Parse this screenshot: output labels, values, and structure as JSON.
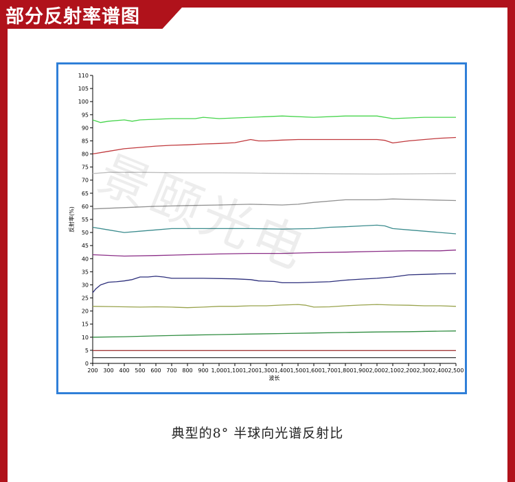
{
  "page": {
    "title": "部分反射率谱图",
    "caption": "典型的8° 半球向光谱反射比",
    "watermark": "景颐光电"
  },
  "colors": {
    "brand_red": "#b0121b",
    "frame_blue": "#2f7fd8"
  },
  "chart_data": {
    "type": "line",
    "title": "",
    "xlabel": "波长",
    "ylabel": "反射率(%)",
    "xlim": [
      200,
      2500
    ],
    "ylim": [
      0,
      110
    ],
    "grid": false,
    "x_ticks": [
      200,
      300,
      400,
      500,
      600,
      700,
      800,
      900,
      1000,
      1100,
      1200,
      1300,
      1400,
      1500,
      1600,
      1700,
      1800,
      1900,
      2000,
      2100,
      2200,
      2300,
      2400,
      2500
    ],
    "x_tick_labels": [
      "200",
      "300",
      "400",
      "500",
      "600",
      "700",
      "800",
      "900",
      "1,000",
      "1,100",
      "1,200",
      "1,300",
      "1,400",
      "1,500",
      "1,600",
      "1,700",
      "1,800",
      "1,900",
      "2,000",
      "2,100",
      "2,200",
      "2,300",
      "2,400",
      "2,500"
    ],
    "y_ticks": [
      0,
      5,
      10,
      15,
      20,
      25,
      30,
      35,
      40,
      45,
      50,
      55,
      60,
      65,
      70,
      75,
      80,
      85,
      90,
      95,
      100,
      105,
      110
    ],
    "series": [
      {
        "color": "#44d44a",
        "x": [
          200,
          250,
          300,
          400,
          450,
          500,
          700,
          850,
          900,
          1000,
          1200,
          1400,
          1600,
          1800,
          1950,
          2000,
          2100,
          2300,
          2500
        ],
        "y": [
          93,
          92,
          92.5,
          93,
          92.5,
          93,
          93.5,
          93.5,
          94,
          93.5,
          94,
          94.5,
          94,
          94.5,
          94.5,
          94.5,
          93.5,
          94,
          94
        ]
      },
      {
        "color": "#c0383c",
        "x": [
          200,
          300,
          400,
          500,
          600,
          700,
          800,
          900,
          1000,
          1100,
          1200,
          1250,
          1300,
          1400,
          1500,
          1700,
          1900,
          2000,
          2050,
          2100,
          2200,
          2300,
          2400,
          2500
        ],
        "y": [
          80,
          81,
          82,
          82.5,
          83,
          83.3,
          83.5,
          83.8,
          84,
          84.3,
          85.5,
          85,
          85,
          85.3,
          85.5,
          85.5,
          85.5,
          85.5,
          85.2,
          84.2,
          85,
          85.5,
          86,
          86.3
        ]
      },
      {
        "color": "#bdbdbd",
        "x": [
          200,
          300,
          500,
          800,
          1000,
          1200,
          1500,
          1800,
          2000,
          2200,
          2500
        ],
        "y": [
          72.5,
          73,
          73,
          72.8,
          72.8,
          72.7,
          72.5,
          72.4,
          72.3,
          72.4,
          72.5
        ]
      },
      {
        "color": "#909090",
        "x": [
          200,
          400,
          600,
          800,
          1000,
          1200,
          1400,
          1500,
          1600,
          1800,
          2000,
          2100,
          2300,
          2500
        ],
        "y": [
          59,
          59.5,
          60,
          60.3,
          60.5,
          60.8,
          60.5,
          60.8,
          61.5,
          62.5,
          62.5,
          62.8,
          62.5,
          62.2
        ]
      },
      {
        "color": "#3a8b8d",
        "x": [
          200,
          300,
          400,
          500,
          600,
          700,
          800,
          1000,
          1200,
          1400,
          1600,
          1700,
          1800,
          1900,
          2000,
          2050,
          2100,
          2200,
          2300,
          2400,
          2500
        ],
        "y": [
          52,
          51,
          50,
          50.5,
          51,
          51.5,
          51.5,
          51.5,
          51.5,
          51.3,
          51.5,
          52,
          52.2,
          52.5,
          52.8,
          52.5,
          51.5,
          51,
          50.5,
          50,
          49.5
        ]
      },
      {
        "color": "#8a2c86",
        "x": [
          200,
          400,
          600,
          800,
          1000,
          1200,
          1400,
          1600,
          1800,
          2000,
          2200,
          2400,
          2500
        ],
        "y": [
          41.5,
          41,
          41.2,
          41.5,
          41.8,
          42,
          42,
          42.3,
          42.5,
          42.8,
          43,
          43,
          43.3
        ]
      },
      {
        "color": "#2b2d7a",
        "x": [
          200,
          220,
          250,
          300,
          350,
          400,
          450,
          500,
          550,
          600,
          650,
          700,
          900,
          1100,
          1200,
          1250,
          1350,
          1400,
          1500,
          1600,
          1700,
          1800,
          1900,
          2000,
          2100,
          2200,
          2300,
          2400,
          2500
        ],
        "y": [
          27,
          28.5,
          30,
          31,
          31.2,
          31.5,
          32,
          33,
          33,
          33.3,
          33,
          32.5,
          32.5,
          32.3,
          32,
          31.5,
          31.3,
          30.8,
          30.8,
          31,
          31.2,
          31.8,
          32.2,
          32.5,
          33,
          33.8,
          34,
          34.2,
          34.3
        ]
      },
      {
        "color": "#98a24b",
        "x": [
          200,
          300,
          500,
          600,
          700,
          800,
          900,
          1000,
          1100,
          1200,
          1300,
          1400,
          1500,
          1550,
          1600,
          1700,
          1800,
          1900,
          2000,
          2100,
          2200,
          2300,
          2400,
          2500
        ],
        "y": [
          21.8,
          21.7,
          21.5,
          21.6,
          21.5,
          21.3,
          21.5,
          21.8,
          21.8,
          22,
          22,
          22.3,
          22.5,
          22.2,
          21.5,
          21.6,
          22,
          22.3,
          22.5,
          22.3,
          22.2,
          22,
          22,
          21.8
        ]
      },
      {
        "color": "#2e8c3f",
        "x": [
          200,
          400,
          600,
          800,
          1000,
          1200,
          1400,
          1600,
          1800,
          2000,
          2200,
          2400,
          2500
        ],
        "y": [
          10,
          10.2,
          10.5,
          10.8,
          11,
          11.2,
          11.4,
          11.6,
          11.8,
          12,
          12.1,
          12.3,
          12.4
        ]
      },
      {
        "color": "#a33a3a",
        "x": [
          200,
          500,
          1000,
          1500,
          2000,
          2500
        ],
        "y": [
          4.9,
          4.9,
          4.9,
          4.9,
          4.9,
          4.9
        ]
      },
      {
        "color": "#333333",
        "x": [
          200,
          500,
          1000,
          1500,
          2000,
          2500
        ],
        "y": [
          2.2,
          2.2,
          2.2,
          2.2,
          2.2,
          2.2
        ]
      }
    ]
  }
}
